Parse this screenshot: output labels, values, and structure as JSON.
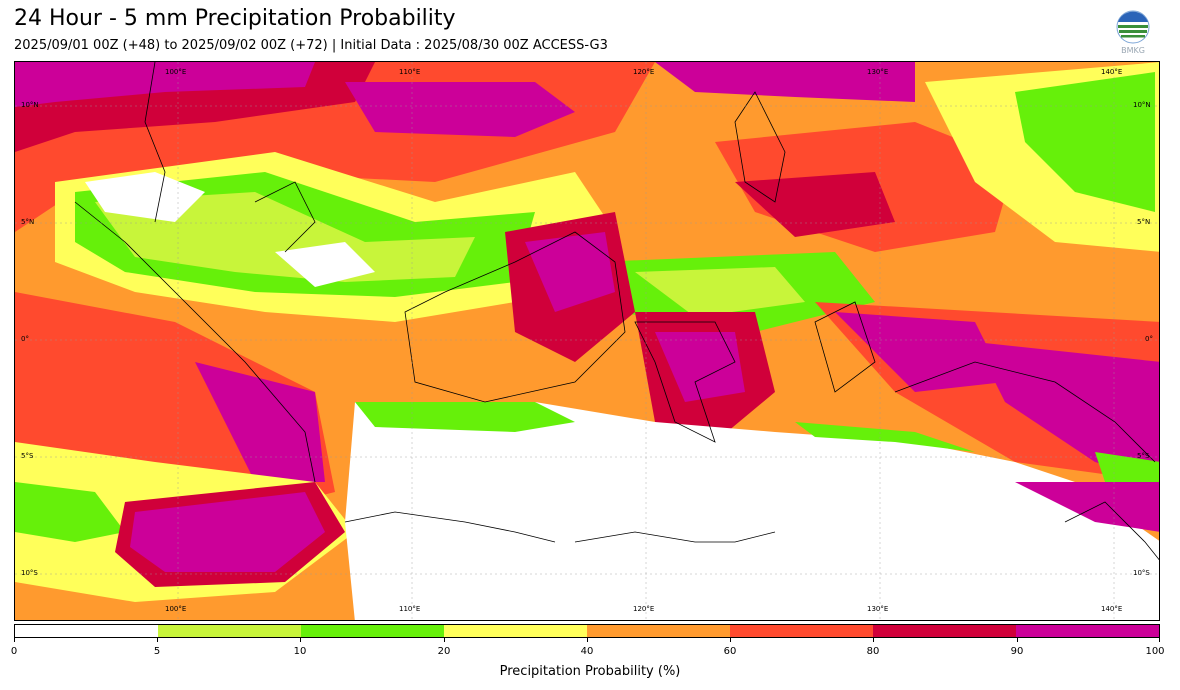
{
  "header": {
    "title": "24 Hour - 5 mm Precipitation Probability",
    "subtitle": "2025/09/01 00Z (+48) to 2025/09/02 00Z (+72) | Initial Data : 2025/08/30 00Z ACCESS-G3"
  },
  "logo": {
    "text": "BMKG",
    "icon": "bmkg-globe-logo"
  },
  "map": {
    "lon_top": [
      "100°E",
      "110°E",
      "120°E",
      "130°E",
      "140°E"
    ],
    "lon_bottom": [
      "100°E",
      "110°E",
      "120°E",
      "130°E",
      "140°E"
    ],
    "lat_left": [
      "10°N",
      "5°N",
      "0°",
      "5°S",
      "10°S"
    ],
    "lat_right": [
      "10°N",
      "5°N",
      "0°",
      "5°S",
      "10°S"
    ]
  },
  "colorbar": {
    "colors": [
      "#ffffff",
      "#c8f53a",
      "#66f00a",
      "#ffff5a",
      "#ff9a2e",
      "#ff4a2e",
      "#d0003a",
      "#cc0099"
    ],
    "ticks": [
      "0",
      "5",
      "10",
      "20",
      "40",
      "60",
      "80",
      "90",
      "100"
    ],
    "label": "Precipitation Probability (%)"
  }
}
